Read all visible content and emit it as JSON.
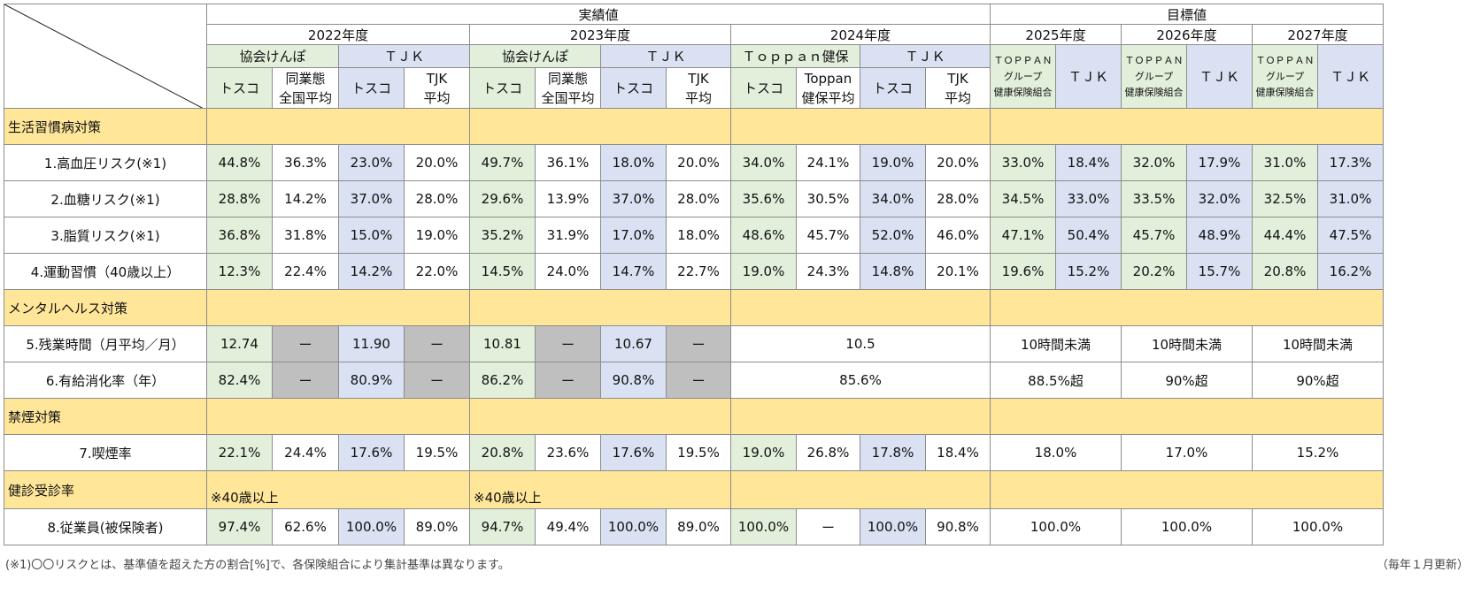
{
  "header": {
    "actual": "実績値",
    "target": "目標値",
    "years": [
      "2022年度",
      "2023年度",
      "2024年度",
      "2025年度",
      "2026年度",
      "2027年度"
    ],
    "groups": {
      "kyokai": "協会けんぽ",
      "tjk": "ＴＪＫ",
      "toppan_kenpo": "Ｔｏｐｐａｎ健保",
      "toppan_group": [
        "ＴＯＰＰＡＮ",
        "グループ",
        "健康保険組合"
      ]
    },
    "cols": {
      "tosco": "トスコ",
      "industry_avg": [
        "同業態",
        "全国平均"
      ],
      "tjk_avg": [
        "TJK",
        "平均"
      ],
      "toppan_avg": [
        "Toppan",
        "健保平均"
      ]
    }
  },
  "sections": {
    "lifestyle": "生活習慣病対策",
    "mental": "メンタルヘルス対策",
    "smoking": "禁煙対策",
    "checkup": "健診受診率"
  },
  "checkup_note": "※40歳以上",
  "rows": [
    {
      "label": "1.高血圧リスク(※1)",
      "v2022": [
        "44.8%",
        "36.3%",
        "23.0%",
        "20.0%"
      ],
      "v2023": [
        "49.7%",
        "36.1%",
        "18.0%",
        "20.0%"
      ],
      "v2024": [
        "34.0%",
        "24.1%",
        "19.0%",
        "20.0%"
      ],
      "targets": [
        "33.0%",
        "18.4%",
        "32.0%",
        "17.9%",
        "31.0%",
        "17.3%"
      ]
    },
    {
      "label": "2.血糖リスク(※1)",
      "v2022": [
        "28.8%",
        "14.2%",
        "37.0%",
        "28.0%"
      ],
      "v2023": [
        "29.6%",
        "13.9%",
        "37.0%",
        "28.0%"
      ],
      "v2024": [
        "35.6%",
        "30.5%",
        "34.0%",
        "28.0%"
      ],
      "targets": [
        "34.5%",
        "33.0%",
        "33.5%",
        "32.0%",
        "32.5%",
        "31.0%"
      ]
    },
    {
      "label": "3.脂質リスク(※1)",
      "v2022": [
        "36.8%",
        "31.8%",
        "15.0%",
        "19.0%"
      ],
      "v2023": [
        "35.2%",
        "31.9%",
        "17.0%",
        "18.0%"
      ],
      "v2024": [
        "48.6%",
        "45.7%",
        "52.0%",
        "46.0%"
      ],
      "targets": [
        "47.1%",
        "50.4%",
        "45.7%",
        "48.9%",
        "44.4%",
        "47.5%"
      ]
    },
    {
      "label": "4.運動習慣（40歳以上）",
      "v2022": [
        "12.3%",
        "22.4%",
        "14.2%",
        "22.0%"
      ],
      "v2023": [
        "14.5%",
        "24.0%",
        "14.7%",
        "22.7%"
      ],
      "v2024": [
        "19.0%",
        "24.3%",
        "14.8%",
        "20.1%"
      ],
      "targets": [
        "19.6%",
        "15.2%",
        "20.2%",
        "15.7%",
        "20.8%",
        "16.2%"
      ]
    }
  ],
  "mental_rows": [
    {
      "label": "5.残業時間（月平均／月）",
      "v2022": [
        "12.74",
        "ー",
        "11.90",
        "ー"
      ],
      "v2023": [
        "10.81",
        "ー",
        "10.67",
        "ー"
      ],
      "v2024": "10.5",
      "targets": [
        "10時間未満",
        "10時間未満",
        "10時間未満"
      ]
    },
    {
      "label": "6.有給消化率（年）",
      "v2022": [
        "82.4%",
        "ー",
        "80.9%",
        "ー"
      ],
      "v2023": [
        "86.2%",
        "ー",
        "90.8%",
        "ー"
      ],
      "v2024": "85.6%",
      "targets": [
        "88.5%超",
        "90%超",
        "90%超"
      ]
    }
  ],
  "smoking_row": {
    "label": "7.喫煙率",
    "v2022": [
      "22.1%",
      "24.4%",
      "17.6%",
      "19.5%"
    ],
    "v2023": [
      "20.8%",
      "23.6%",
      "17.6%",
      "19.5%"
    ],
    "v2024": [
      "19.0%",
      "26.8%",
      "17.8%",
      "18.4%"
    ],
    "targets": [
      "18.0%",
      "17.0%",
      "15.2%"
    ]
  },
  "checkup_row": {
    "label": "8.従業員(被保険者)",
    "v2022": [
      "97.4%",
      "62.6%",
      "100.0%",
      "89.0%"
    ],
    "v2023": [
      "94.7%",
      "49.4%",
      "100.0%",
      "89.0%"
    ],
    "v2024": [
      "100.0%",
      "ー",
      "100.0%",
      "90.8%"
    ],
    "targets": [
      "100.0%",
      "100.0%",
      "100.0%"
    ]
  },
  "footnote": "(※1)〇〇リスクとは、基準値を超えた方の割合[%]で、各保険組合により集計基準は異なります。",
  "updated": "（毎年１月更新）"
}
